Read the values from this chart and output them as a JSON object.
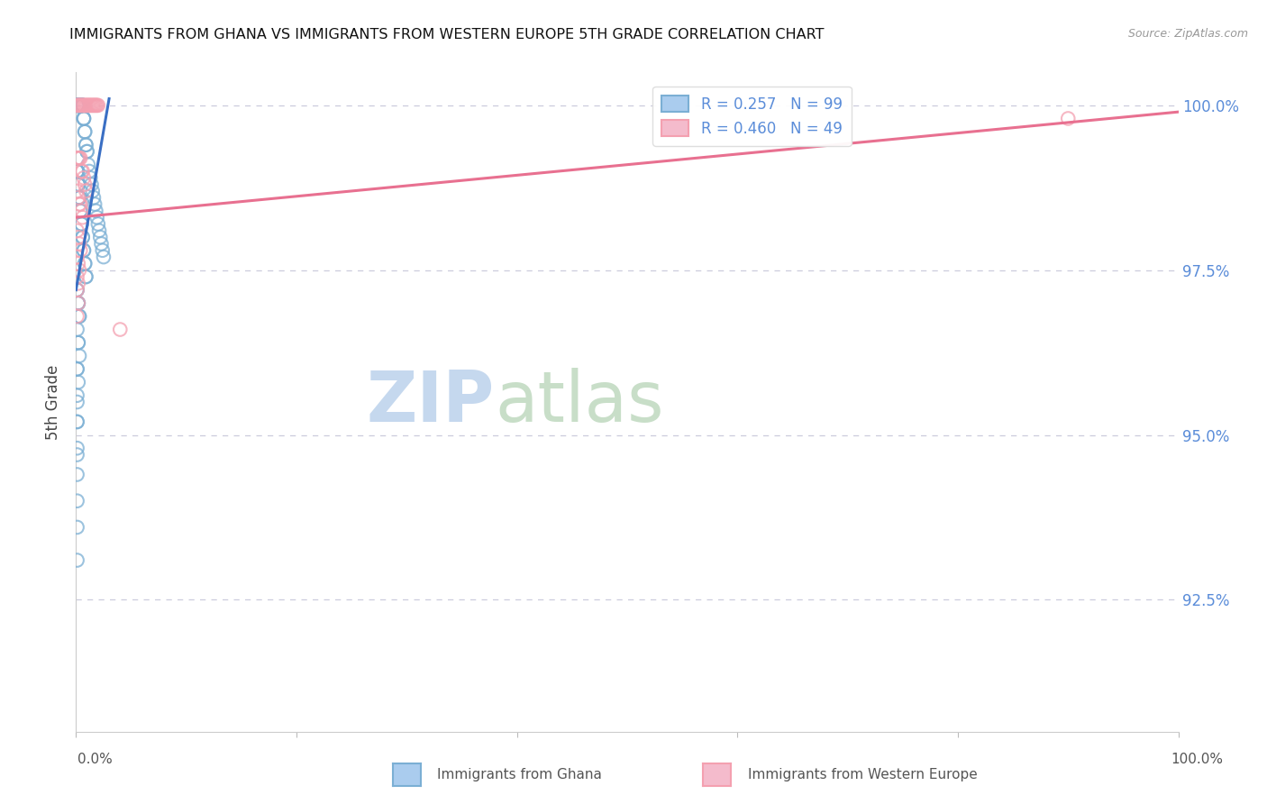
{
  "title": "IMMIGRANTS FROM GHANA VS IMMIGRANTS FROM WESTERN EUROPE 5TH GRADE CORRELATION CHART",
  "source": "Source: ZipAtlas.com",
  "ylabel": "5th Grade",
  "ytick_labels": [
    "100.0%",
    "97.5%",
    "95.0%",
    "92.5%"
  ],
  "ytick_values": [
    1.0,
    0.975,
    0.95,
    0.925
  ],
  "xlim": [
    0.0,
    1.0
  ],
  "ylim": [
    0.905,
    1.005
  ],
  "blue_color": "#7BAFD4",
  "pink_color": "#F4A0B0",
  "trendline_blue": "#3A6FC4",
  "trendline_pink": "#E87090",
  "background": "#FFFFFF",
  "watermark_zip": "ZIP",
  "watermark_atlas": "atlas",
  "watermark_zip_color": "#C8DCF0",
  "watermark_atlas_color": "#D8E8D0",
  "grid_color": "#CCCCDD",
  "right_tick_color": "#5B8DD9",
  "legend_blue_face": "#AACCEE",
  "legend_pink_face": "#F4BBCC",
  "blue_scatter_x": [
    0.001,
    0.001,
    0.001,
    0.002,
    0.002,
    0.002,
    0.002,
    0.002,
    0.003,
    0.003,
    0.003,
    0.003,
    0.003,
    0.004,
    0.004,
    0.004,
    0.004,
    0.004,
    0.005,
    0.005,
    0.005,
    0.005,
    0.006,
    0.006,
    0.006,
    0.007,
    0.007,
    0.007,
    0.008,
    0.008,
    0.009,
    0.009,
    0.01,
    0.01,
    0.011,
    0.012,
    0.013,
    0.014,
    0.015,
    0.016,
    0.017,
    0.018,
    0.019,
    0.02,
    0.021,
    0.022,
    0.023,
    0.024,
    0.025,
    0.001,
    0.001,
    0.001,
    0.002,
    0.002,
    0.002,
    0.003,
    0.003,
    0.003,
    0.004,
    0.004,
    0.005,
    0.005,
    0.006,
    0.006,
    0.007,
    0.007,
    0.008,
    0.008,
    0.009,
    0.009,
    0.001,
    0.001,
    0.002,
    0.002,
    0.002,
    0.003,
    0.003,
    0.001,
    0.002,
    0.002,
    0.003,
    0.001,
    0.001,
    0.002,
    0.001,
    0.001,
    0.001,
    0.001,
    0.001,
    0.001,
    0.001,
    0.001,
    0.001,
    0.001
  ],
  "blue_scatter_y": [
    1.0,
    1.0,
    1.0,
    1.0,
    1.0,
    1.0,
    1.0,
    1.0,
    1.0,
    1.0,
    1.0,
    1.0,
    1.0,
    1.0,
    1.0,
    1.0,
    1.0,
    1.0,
    1.0,
    1.0,
    1.0,
    1.0,
    1.0,
    1.0,
    1.0,
    0.998,
    0.998,
    0.998,
    0.996,
    0.996,
    0.994,
    0.994,
    0.993,
    0.993,
    0.991,
    0.99,
    0.989,
    0.988,
    0.987,
    0.986,
    0.985,
    0.984,
    0.983,
    0.982,
    0.981,
    0.98,
    0.979,
    0.978,
    0.977,
    0.99,
    0.99,
    0.99,
    0.988,
    0.988,
    0.988,
    0.986,
    0.986,
    0.986,
    0.984,
    0.984,
    0.982,
    0.982,
    0.98,
    0.98,
    0.978,
    0.978,
    0.976,
    0.976,
    0.974,
    0.974,
    0.972,
    0.972,
    0.97,
    0.97,
    0.97,
    0.968,
    0.968,
    0.966,
    0.964,
    0.964,
    0.962,
    0.96,
    0.96,
    0.958,
    0.956,
    0.955,
    0.952,
    0.952,
    0.948,
    0.947,
    0.944,
    0.94,
    0.936,
    0.931
  ],
  "pink_scatter_x": [
    0.001,
    0.002,
    0.003,
    0.004,
    0.005,
    0.006,
    0.007,
    0.008,
    0.009,
    0.01,
    0.011,
    0.012,
    0.013,
    0.014,
    0.015,
    0.016,
    0.017,
    0.018,
    0.019,
    0.02,
    0.001,
    0.002,
    0.003,
    0.004,
    0.005,
    0.006,
    0.007,
    0.008,
    0.009,
    0.001,
    0.002,
    0.003,
    0.004,
    0.005,
    0.006,
    0.001,
    0.002,
    0.003,
    0.004,
    0.001,
    0.002,
    0.003,
    0.001,
    0.002,
    0.001,
    0.002,
    0.001,
    0.04,
    0.9
  ],
  "pink_scatter_y": [
    1.0,
    1.0,
    1.0,
    1.0,
    1.0,
    1.0,
    1.0,
    1.0,
    1.0,
    1.0,
    1.0,
    1.0,
    1.0,
    1.0,
    1.0,
    1.0,
    1.0,
    1.0,
    1.0,
    1.0,
    0.992,
    0.992,
    0.992,
    0.992,
    0.99,
    0.99,
    0.989,
    0.988,
    0.987,
    0.987,
    0.986,
    0.985,
    0.985,
    0.984,
    0.983,
    0.981,
    0.98,
    0.979,
    0.978,
    0.977,
    0.976,
    0.975,
    0.974,
    0.973,
    0.972,
    0.97,
    0.968,
    0.966,
    0.998
  ],
  "blue_trend_start_x": 0.0,
  "blue_trend_start_y": 0.972,
  "blue_trend_end_x": 0.03,
  "blue_trend_end_y": 1.001,
  "pink_trend_start_x": 0.0,
  "pink_trend_start_y": 0.983,
  "pink_trend_end_x": 1.0,
  "pink_trend_end_y": 0.999
}
